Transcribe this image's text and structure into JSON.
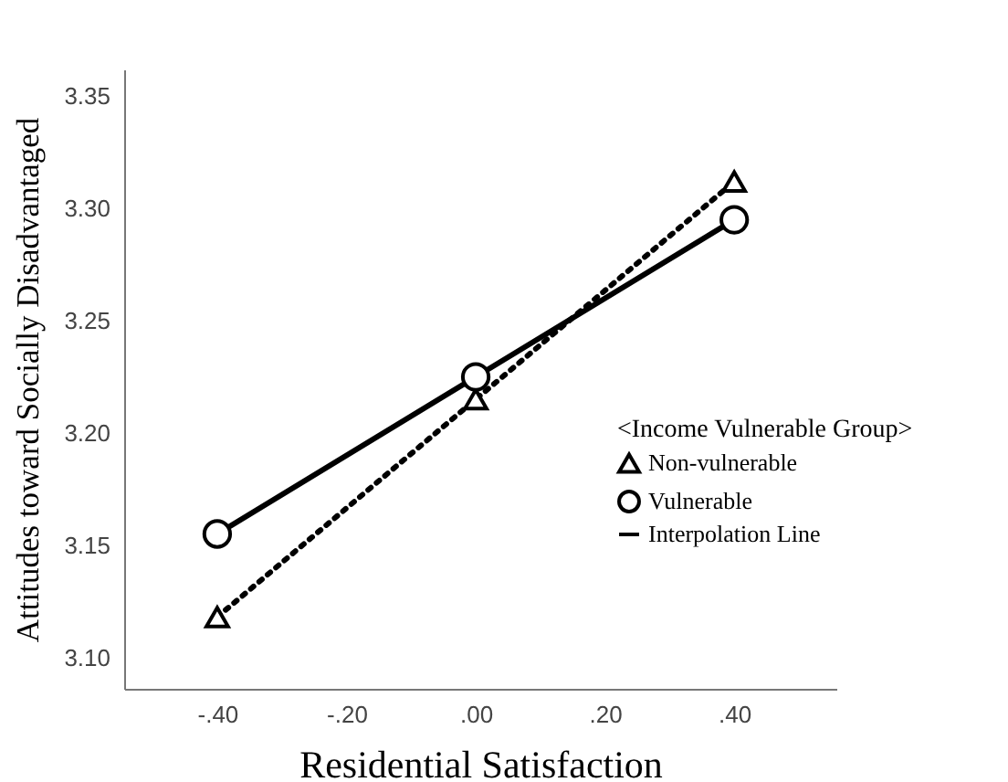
{
  "chart_data": {
    "type": "line",
    "xlabel": "Residential Satisfaction",
    "ylabel": "Attitudes toward Socially Disadvantaged",
    "legend_title": "<Income Vulnerable Group>",
    "legend": "right",
    "x": [
      -0.4,
      0,
      0.4
    ],
    "series": [
      {
        "name": "Non-vulnerable",
        "color": "#000000",
        "marker": "triangle",
        "line_style": "dotted",
        "values": [
          3.118,
          3.215,
          3.312
        ]
      },
      {
        "name": "Vulnerable",
        "color": "#000000",
        "marker": "circle",
        "line_style": "solid",
        "values": [
          3.155,
          3.225,
          3.295
        ]
      }
    ],
    "annotations": [
      "Interpolation Line"
    ],
    "xlim": [
      -0.544,
      0.558
    ],
    "xticks": [
      {
        "value": -0.4,
        "label": "-.40"
      },
      {
        "value": -0.2,
        "label": "-.20"
      },
      {
        "value": 0,
        "label": ".00"
      },
      {
        "value": 0.2,
        "label": ".20"
      },
      {
        "value": 0.4,
        "label": ".40"
      }
    ],
    "ylim": [
      3.086,
      3.362
    ],
    "yticks": [
      {
        "value": 3.1,
        "label": "3.10"
      },
      {
        "value": 3.15,
        "label": "3.15"
      },
      {
        "value": 3.2,
        "label": "3.20"
      },
      {
        "value": 3.25,
        "label": "3.25"
      },
      {
        "value": 3.3,
        "label": "3.30"
      },
      {
        "value": 3.35,
        "label": "3.35"
      }
    ],
    "grid": false
  }
}
